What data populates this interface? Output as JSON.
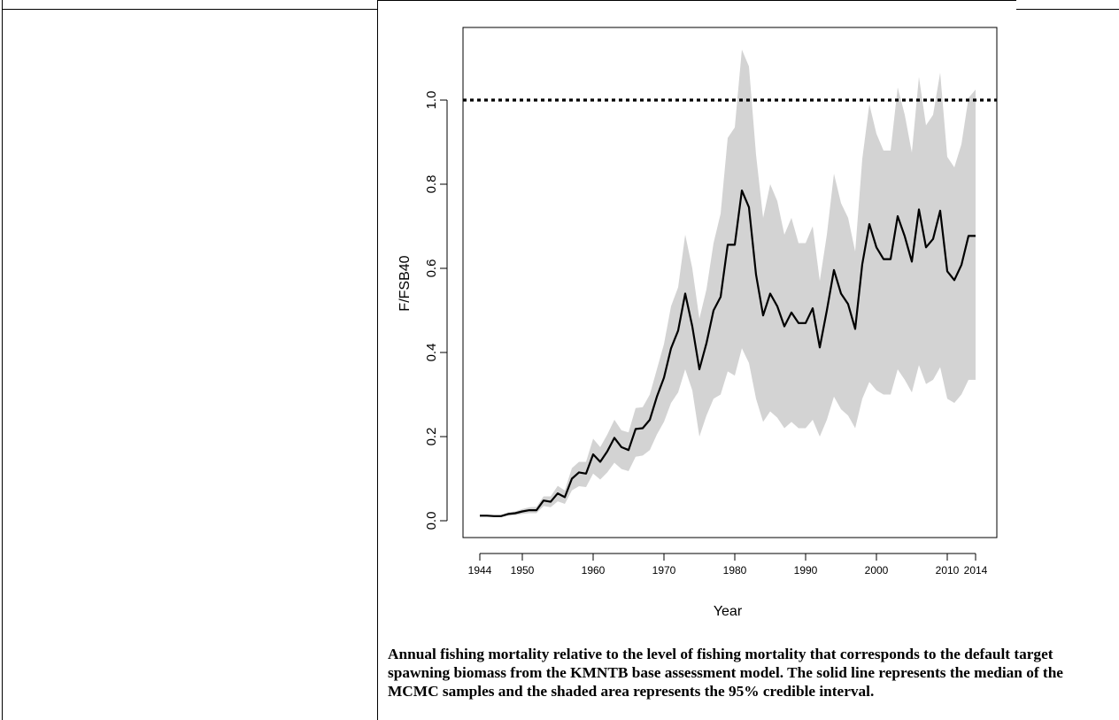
{
  "chart_data": {
    "type": "line",
    "xlabel": "Year",
    "ylabel": "F/FSB40",
    "x_ticks": [
      "1944",
      "1950",
      "1960",
      "1970",
      "1980",
      "1990",
      "2000",
      "2010",
      "2014"
    ],
    "y_ticks": [
      "0.0",
      "0.2",
      "0.4",
      "0.6",
      "0.8",
      "1.0"
    ],
    "xlim": [
      1944,
      2014
    ],
    "ylim": [
      0,
      1.1
    ],
    "reference_line": {
      "y": 1.0,
      "style": "dotted"
    },
    "band_color": "#d3d3d3",
    "line_color": "#000000",
    "x": [
      1944,
      1945,
      1946,
      1947,
      1948,
      1949,
      1950,
      1951,
      1952,
      1953,
      1954,
      1955,
      1956,
      1957,
      1958,
      1959,
      1960,
      1961,
      1962,
      1963,
      1964,
      1965,
      1966,
      1967,
      1968,
      1969,
      1970,
      1971,
      1972,
      1973,
      1974,
      1975,
      1976,
      1977,
      1978,
      1979,
      1980,
      1981,
      1982,
      1983,
      1984,
      1985,
      1986,
      1987,
      1988,
      1989,
      1990,
      1991,
      1992,
      1993,
      1994,
      1995,
      1996,
      1997,
      1998,
      1999,
      2000,
      2001,
      2002,
      2003,
      2004,
      2005,
      2006,
      2007,
      2008,
      2009,
      2010,
      2011,
      2012,
      2013,
      2014
    ],
    "series": [
      {
        "values": [
          0.012,
          0.012,
          0.011,
          0.011,
          0.016,
          0.018,
          0.022,
          0.025,
          0.025,
          0.048,
          0.045,
          0.065,
          0.056,
          0.1,
          0.115,
          0.112,
          0.158,
          0.14,
          0.165,
          0.197,
          0.175,
          0.168,
          0.218,
          0.22,
          0.24,
          0.295,
          0.34,
          0.41,
          0.452,
          0.54,
          0.462,
          0.36,
          0.422,
          0.5,
          0.532,
          0.656,
          0.656,
          0.785,
          0.745,
          0.585,
          0.488,
          0.54,
          0.51,
          0.462,
          0.495,
          0.47,
          0.47,
          0.505,
          0.412,
          0.5,
          0.596,
          0.54,
          0.515,
          0.456,
          0.61,
          0.705,
          0.65,
          0.622,
          0.622,
          0.724,
          0.676,
          0.616,
          0.74,
          0.65,
          0.67,
          0.737,
          0.593,
          0.572,
          0.608,
          0.677,
          0.677
        ]
      }
    ],
    "band_upper": [
      0.015,
      0.015,
      0.014,
      0.014,
      0.02,
      0.022,
      0.028,
      0.032,
      0.033,
      0.058,
      0.058,
      0.083,
      0.072,
      0.125,
      0.14,
      0.14,
      0.195,
      0.175,
      0.205,
      0.24,
      0.215,
      0.21,
      0.268,
      0.27,
      0.3,
      0.36,
      0.42,
      0.51,
      0.555,
      0.68,
      0.6,
      0.48,
      0.55,
      0.66,
      0.73,
      0.91,
      0.935,
      1.12,
      1.08,
      0.87,
      0.72,
      0.8,
      0.76,
      0.68,
      0.72,
      0.66,
      0.66,
      0.7,
      0.57,
      0.68,
      0.825,
      0.755,
      0.72,
      0.64,
      0.86,
      0.99,
      0.92,
      0.88,
      0.88,
      1.03,
      0.965,
      0.875,
      1.055,
      0.94,
      0.965,
      1.065,
      0.865,
      0.84,
      0.895,
      1.005,
      1.025
    ],
    "band_lower": [
      0.01,
      0.01,
      0.009,
      0.009,
      0.012,
      0.013,
      0.016,
      0.018,
      0.018,
      0.035,
      0.032,
      0.046,
      0.04,
      0.072,
      0.082,
      0.08,
      0.112,
      0.098,
      0.115,
      0.138,
      0.123,
      0.118,
      0.152,
      0.155,
      0.168,
      0.205,
      0.235,
      0.28,
      0.305,
      0.36,
      0.31,
      0.2,
      0.25,
      0.29,
      0.3,
      0.355,
      0.345,
      0.41,
      0.375,
      0.29,
      0.235,
      0.26,
      0.245,
      0.22,
      0.235,
      0.22,
      0.22,
      0.24,
      0.2,
      0.24,
      0.295,
      0.265,
      0.25,
      0.22,
      0.29,
      0.33,
      0.31,
      0.3,
      0.3,
      0.36,
      0.335,
      0.305,
      0.37,
      0.325,
      0.335,
      0.365,
      0.29,
      0.28,
      0.3,
      0.335,
      0.335
    ]
  },
  "caption": "Annual fishing mortality relative to the level of fishing mortality that corresponds to the default target spawning biomass from the KMNTB base assessment model. The solid line represents the median of the MCMC samples and the shaded area represents the 95% credible interval."
}
